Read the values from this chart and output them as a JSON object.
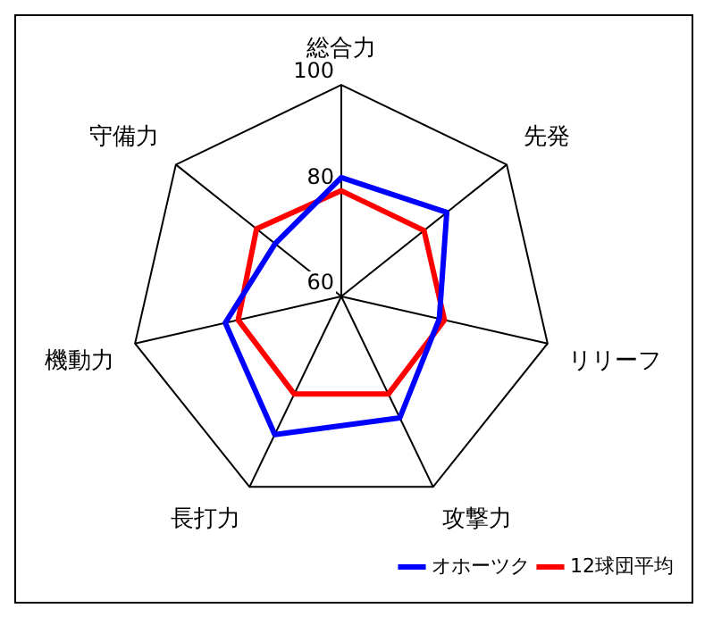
{
  "chart_data": {
    "type": "radar",
    "categories": [
      "総合力",
      "先発",
      "リリーフ",
      "攻撃力",
      "長打力",
      "機動力",
      "守備力"
    ],
    "series": [
      {
        "name": "オホーツク",
        "color": "#0000ff",
        "values": [
          82.5,
          85.5,
          79,
          85.5,
          89,
          82.5,
          76
        ]
      },
      {
        "name": "12球団平均",
        "color": "#ff0000",
        "values": [
          80,
          80,
          80,
          80.5,
          80.5,
          80,
          80.5
        ]
      }
    ],
    "ylim": [
      60,
      100
    ],
    "yticks": [
      60,
      80,
      100
    ],
    "grid": false,
    "legend": "bottom right"
  }
}
